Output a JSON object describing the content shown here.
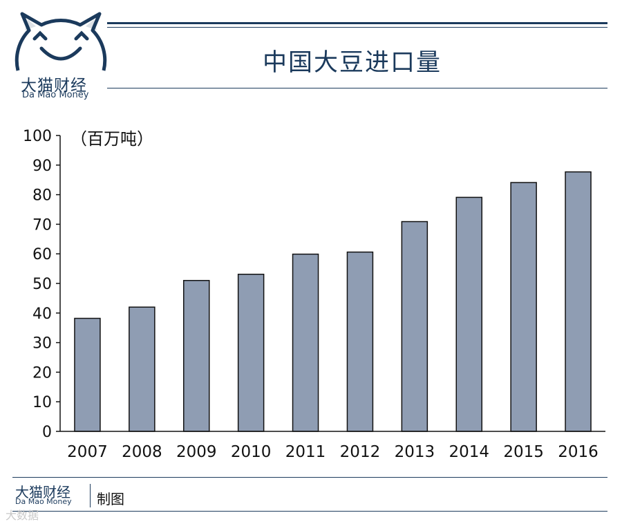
{
  "brand": {
    "name_cn": "大猫财经",
    "name_en": "Da Mao Money",
    "color": "#1b3a5c"
  },
  "footer": {
    "brand_cn": "大猫财经",
    "brand_en": "Da Mao Money",
    "credit": "制图",
    "watermark": "大数据"
  },
  "chart_data": {
    "type": "bar",
    "title": "中国大豆进口量",
    "unit_label": "（百万吨）",
    "xlabel": "",
    "ylabel": "",
    "categories": [
      "2007",
      "2008",
      "2009",
      "2010",
      "2011",
      "2012",
      "2013",
      "2014",
      "2015",
      "2016"
    ],
    "values": [
      38.2,
      42.0,
      51.0,
      53.1,
      59.9,
      60.6,
      70.9,
      79.1,
      84.1,
      87.7
    ],
    "ylim": [
      0,
      100
    ],
    "yticks": [
      0,
      10,
      20,
      30,
      40,
      50,
      60,
      70,
      80,
      90,
      100
    ],
    "bar_color": "#8f9db3",
    "grid": false,
    "legend": "none"
  }
}
